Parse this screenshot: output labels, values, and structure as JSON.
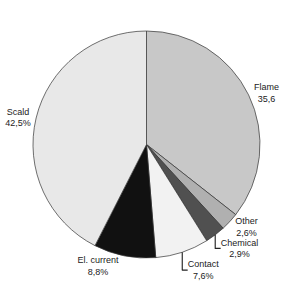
{
  "chart_data": {
    "type": "pie",
    "categories": [
      "Flame",
      "Other",
      "Chemical",
      "Contact",
      "El. current",
      "Scald"
    ],
    "values": [
      35.6,
      2.6,
      2.9,
      7.6,
      8.8,
      42.5
    ],
    "value_labels": [
      "35,6",
      "2,6%",
      "2,9%",
      "7,6%",
      "8,8%",
      "42,5%"
    ],
    "colors": [
      "#c8c8c8",
      "#b0b0b0",
      "#505050",
      "#f2f2f2",
      "#111111",
      "#e8e8e8"
    ],
    "data_labels": true
  }
}
